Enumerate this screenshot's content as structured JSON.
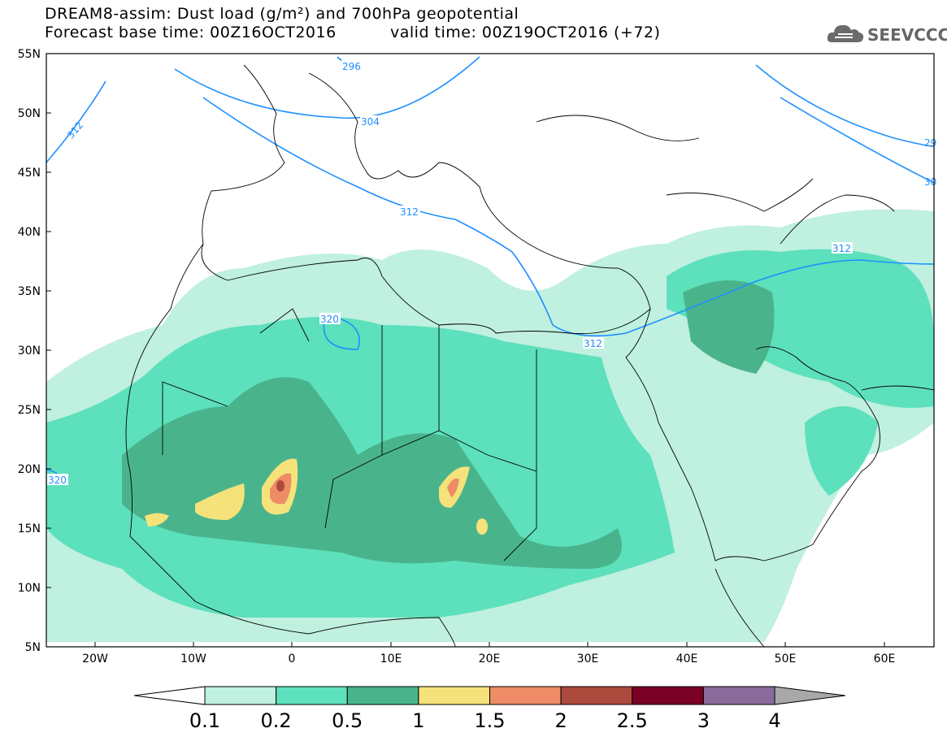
{
  "header": {
    "line1": "DREAM8-assim: Dust load (g/m²) and 700hPa geopotential",
    "line2a": "Forecast base time: 00Z16OCT2016",
    "line2b": "valid time: 00Z19OCT2016 (+72)"
  },
  "logo": {
    "text": "SEEVCCC",
    "icon": "cloud-icon"
  },
  "axes": {
    "lat_labels": [
      "55N",
      "50N",
      "45N",
      "40N",
      "35N",
      "30N",
      "25N",
      "20N",
      "15N",
      "10N",
      "5N"
    ],
    "lon_labels": [
      "20W",
      "10W",
      "0",
      "10E",
      "20E",
      "30E",
      "40E",
      "50E",
      "60E"
    ]
  },
  "contours": {
    "labels": [
      "296",
      "304",
      "312",
      "312",
      "312",
      "312",
      "320",
      "320",
      "29",
      "30"
    ],
    "color": "#1e90ff"
  },
  "colorbar": {
    "labels": [
      "0.1",
      "0.2",
      "0.5",
      "1",
      "1.5",
      "2",
      "2.5",
      "3",
      "4"
    ],
    "colors": [
      "#ffffff",
      "#bff0e0",
      "#5de0bc",
      "#49b48c",
      "#f5e27a",
      "#ed8c67",
      "#ad4a3e",
      "#7a0025",
      "#8b6a9c",
      "#a8a8a8"
    ]
  }
}
